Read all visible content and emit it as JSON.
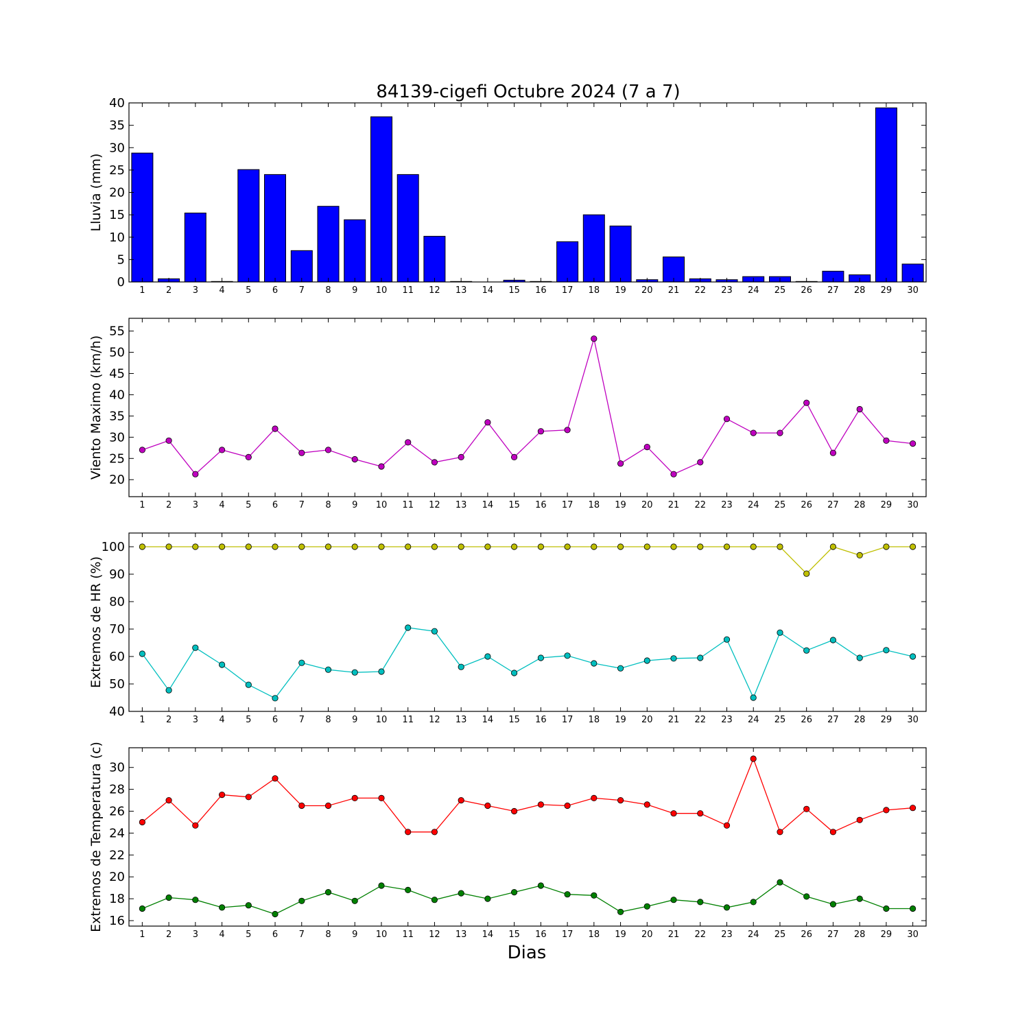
{
  "title": "84139-cigefi Octubre 2024  (7 a 7)",
  "xlabel": "Dias",
  "chart_data": [
    {
      "type": "bar",
      "ylabel": "Lluvia (mm)",
      "ylim": [
        0,
        40
      ],
      "yticks": [
        0,
        5,
        10,
        15,
        20,
        25,
        30,
        35,
        40
      ],
      "categories": [
        1,
        2,
        3,
        4,
        5,
        6,
        7,
        8,
        9,
        10,
        11,
        12,
        13,
        14,
        15,
        16,
        17,
        18,
        19,
        20,
        21,
        22,
        23,
        24,
        25,
        26,
        27,
        28,
        29,
        30
      ],
      "series": [
        {
          "color": "#0000ff",
          "values": [
            28.8,
            0.7,
            15.4,
            0.1,
            25.1,
            24.0,
            7.0,
            16.9,
            13.9,
            36.9,
            24.0,
            10.2,
            0.1,
            0.0,
            0.4,
            0.1,
            9.0,
            15.0,
            12.5,
            0.5,
            5.6,
            0.7,
            0.5,
            1.2,
            1.2,
            0.1,
            2.4,
            1.6,
            38.9,
            4.0
          ]
        }
      ]
    },
    {
      "type": "line",
      "ylabel": "Viento Maximo (km/h)",
      "ylim": [
        16,
        58
      ],
      "yticks": [
        20,
        25,
        30,
        35,
        40,
        45,
        50,
        55
      ],
      "x": [
        1,
        2,
        3,
        4,
        5,
        6,
        7,
        8,
        9,
        10,
        11,
        12,
        13,
        14,
        15,
        16,
        17,
        18,
        19,
        20,
        21,
        22,
        23,
        24,
        25,
        26,
        27,
        28,
        29,
        30
      ],
      "series": [
        {
          "color": "#bf00bf",
          "values": [
            27.0,
            29.2,
            21.3,
            27.0,
            25.3,
            32.0,
            26.3,
            27.0,
            24.8,
            23.1,
            28.8,
            24.1,
            25.3,
            33.5,
            25.3,
            31.4,
            31.7,
            53.2,
            23.8,
            27.7,
            21.3,
            24.1,
            34.3,
            31.0,
            31.0,
            38.1,
            26.3,
            36.6,
            29.2,
            28.5
          ]
        }
      ]
    },
    {
      "type": "line",
      "ylabel": "Extremos de HR (%)",
      "ylim": [
        40,
        105
      ],
      "yticks": [
        40,
        50,
        60,
        70,
        80,
        90,
        100
      ],
      "x": [
        1,
        2,
        3,
        4,
        5,
        6,
        7,
        8,
        9,
        10,
        11,
        12,
        13,
        14,
        15,
        16,
        17,
        18,
        19,
        20,
        21,
        22,
        23,
        24,
        25,
        26,
        27,
        28,
        29,
        30
      ],
      "series": [
        {
          "color": "#bfbf00",
          "values": [
            100,
            100,
            100,
            100,
            100,
            100,
            100,
            100,
            100,
            100,
            100,
            100,
            100,
            100,
            100,
            100,
            100,
            100,
            100,
            100,
            100,
            100,
            100,
            100,
            100,
            90.2,
            100,
            96.9,
            100,
            100
          ]
        },
        {
          "color": "#00bfbf",
          "values": [
            61.0,
            47.7,
            63.2,
            57.0,
            49.7,
            44.8,
            57.7,
            55.2,
            54.2,
            54.5,
            70.5,
            69.2,
            56.2,
            60.0,
            54.0,
            59.5,
            60.3,
            57.5,
            55.7,
            58.5,
            59.3,
            59.5,
            66.2,
            45.0,
            68.7,
            62.2,
            66.0,
            59.5,
            62.3,
            60.0
          ]
        }
      ]
    },
    {
      "type": "line",
      "ylabel": "Extremos de Temperatura (c)",
      "ylim": [
        15.5,
        31.8
      ],
      "yticks": [
        16,
        18,
        20,
        22,
        24,
        26,
        28,
        30
      ],
      "x": [
        1,
        2,
        3,
        4,
        5,
        6,
        7,
        8,
        9,
        10,
        11,
        12,
        13,
        14,
        15,
        16,
        17,
        18,
        19,
        20,
        21,
        22,
        23,
        24,
        25,
        26,
        27,
        28,
        29,
        30
      ],
      "series": [
        {
          "color": "#ff0000",
          "values": [
            25.0,
            27.0,
            24.7,
            27.5,
            27.3,
            29.0,
            26.5,
            26.5,
            27.2,
            27.2,
            24.1,
            24.1,
            27.0,
            26.5,
            26.0,
            26.6,
            26.5,
            27.2,
            27.0,
            26.6,
            25.8,
            25.8,
            24.7,
            30.8,
            24.1,
            26.2,
            24.1,
            25.2,
            26.1,
            26.3
          ]
        },
        {
          "color": "#008000",
          "values": [
            17.1,
            18.1,
            17.9,
            17.2,
            17.4,
            16.6,
            17.8,
            18.6,
            17.8,
            19.2,
            18.8,
            17.9,
            18.5,
            18.0,
            18.6,
            19.2,
            18.4,
            18.3,
            16.8,
            17.3,
            17.9,
            17.7,
            17.2,
            17.7,
            19.5,
            18.2,
            17.5,
            18.0,
            17.1,
            17.1
          ]
        }
      ]
    }
  ]
}
